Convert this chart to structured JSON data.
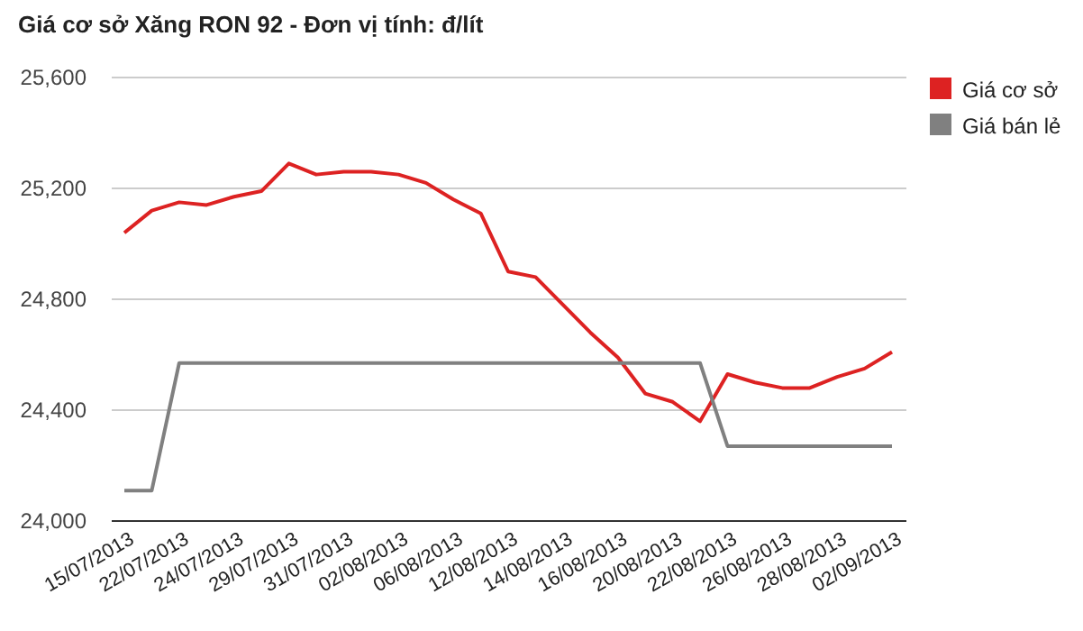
{
  "chart_data": {
    "type": "line",
    "title": "Giá cơ sở Xăng RON 92 - Đơn vị tính: đ/lít",
    "categories": [
      "15/07/2013",
      null,
      "22/07/2013",
      null,
      "24/07/2013",
      null,
      "29/07/2013",
      null,
      "31/07/2013",
      null,
      "02/08/2013",
      null,
      "06/08/2013",
      null,
      "12/08/2013",
      null,
      "14/08/2013",
      null,
      "16/08/2013",
      null,
      "20/08/2013",
      null,
      "22/08/2013",
      null,
      "26/08/2013",
      null,
      "28/08/2013",
      null,
      "02/09/2013"
    ],
    "series": [
      {
        "name": "Giá cơ sở",
        "color": "#dd2222",
        "values": [
          25040,
          25120,
          25150,
          25140,
          25170,
          25190,
          25290,
          25250,
          25260,
          25260,
          25250,
          25220,
          25160,
          25110,
          24900,
          24880,
          24780,
          24680,
          24590,
          24460,
          24430,
          24360,
          24530,
          24500,
          24480,
          24480,
          24520,
          24550,
          24610
        ]
      },
      {
        "name": "Giá bán lẻ",
        "color": "#808080",
        "values": [
          24110,
          24110,
          24570,
          24570,
          24570,
          24570,
          24570,
          24570,
          24570,
          24570,
          24570,
          24570,
          24570,
          24570,
          24570,
          24570,
          24570,
          24570,
          24570,
          24570,
          24570,
          24570,
          24270,
          24270,
          24270,
          24270,
          24270,
          24270,
          24270
        ]
      }
    ],
    "ylim": [
      24000,
      25600
    ],
    "yticks": [
      {
        "value": 24000,
        "label": "24,000"
      },
      {
        "value": 24400,
        "label": "24,400"
      },
      {
        "value": 24800,
        "label": "24,800"
      },
      {
        "value": 25200,
        "label": "25,200"
      },
      {
        "value": 25600,
        "label": "25,600"
      }
    ],
    "grid": "y",
    "legend": "right",
    "marker": "none",
    "line_style": "solid"
  }
}
